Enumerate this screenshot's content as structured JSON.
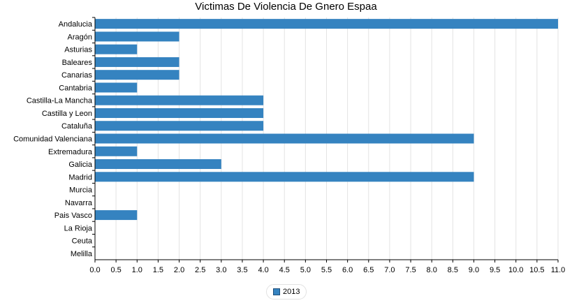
{
  "chart_data": {
    "type": "bar",
    "orientation": "horizontal",
    "title": "Victimas De Violencia De Gnero Espaa",
    "xlabel": "",
    "ylabel": "",
    "xlim": [
      0,
      11
    ],
    "x_ticks": [
      "0.0",
      "0.5",
      "1.0",
      "1.5",
      "2.0",
      "2.5",
      "3.0",
      "3.5",
      "4.0",
      "4.5",
      "5.0",
      "5.5",
      "6.0",
      "6.5",
      "7.0",
      "7.5",
      "8.0",
      "8.5",
      "9.0",
      "9.5",
      "10.0",
      "10.5",
      "11.0"
    ],
    "grid": true,
    "legend_position": "bottom-center",
    "categories": [
      "Andalucia",
      "Aragón",
      "Asturias",
      "Baleares",
      "Canarias",
      "Cantabria",
      "Castilla-La Mancha",
      "Castilla y Leon",
      "Cataluña",
      "Comunidad Valenciana",
      "Extremadura",
      "Galicia",
      "Madrid",
      "Murcia",
      "Navarra",
      "Pais Vasco",
      "La Rioja",
      "Ceuta",
      "Melilla"
    ],
    "series": [
      {
        "name": "2013",
        "color": "#3583c0",
        "values": [
          11,
          2,
          1,
          2,
          2,
          1,
          4,
          4,
          4,
          9,
          1,
          3,
          9,
          0,
          0,
          1,
          0,
          0,
          0
        ]
      }
    ]
  }
}
